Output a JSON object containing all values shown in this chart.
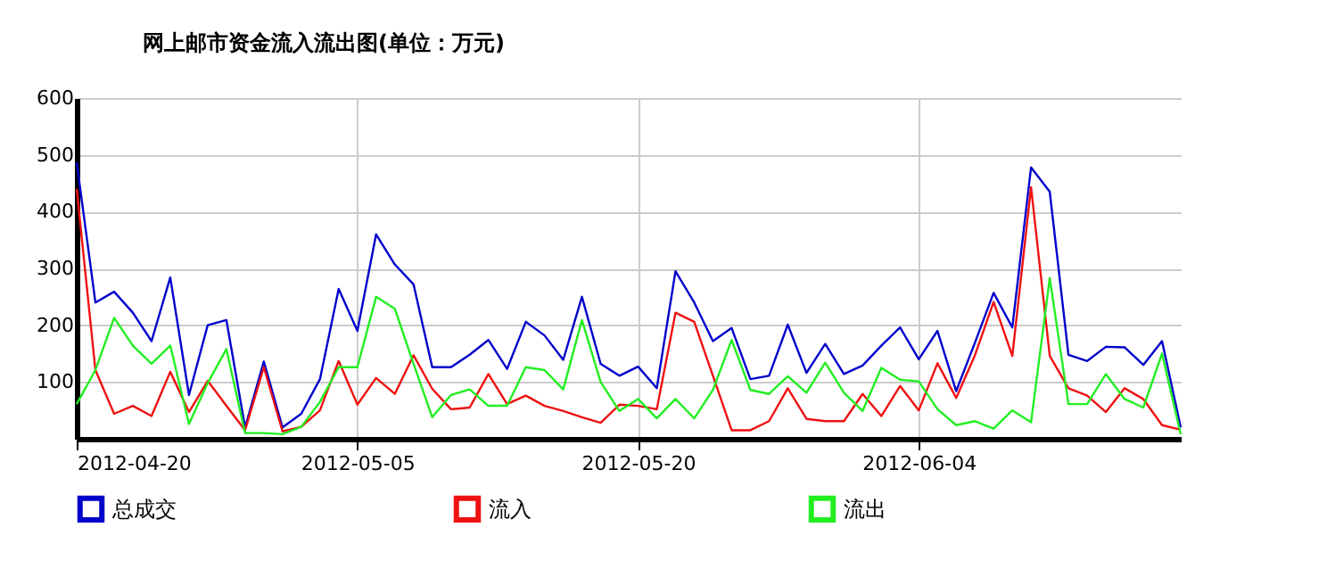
{
  "chart_data": {
    "type": "line",
    "title": "网上邮市资金流入流出图(单位：万元)",
    "x": [
      "2012-04-20",
      "2012-04-21",
      "2012-04-22",
      "2012-04-23",
      "2012-04-24",
      "2012-04-25",
      "2012-04-26",
      "2012-04-27",
      "2012-04-28",
      "2012-04-29",
      "2012-04-30",
      "2012-05-01",
      "2012-05-02",
      "2012-05-03",
      "2012-05-04",
      "2012-05-05",
      "2012-05-06",
      "2012-05-07",
      "2012-05-08",
      "2012-05-09",
      "2012-05-10",
      "2012-05-11",
      "2012-05-12",
      "2012-05-13",
      "2012-05-14",
      "2012-05-15",
      "2012-05-16",
      "2012-05-17",
      "2012-05-18",
      "2012-05-19",
      "2012-05-20",
      "2012-05-21",
      "2012-05-22",
      "2012-05-23",
      "2012-05-24",
      "2012-05-25",
      "2012-05-26",
      "2012-05-27",
      "2012-05-28",
      "2012-05-29",
      "2012-05-30",
      "2012-05-31",
      "2012-06-01",
      "2012-06-02",
      "2012-06-03",
      "2012-06-04",
      "2012-06-05",
      "2012-06-06",
      "2012-06-07",
      "2012-06-08",
      "2012-06-09",
      "2012-06-10",
      "2012-06-11",
      "2012-06-12",
      "2012-06-13",
      "2012-06-14",
      "2012-06-15",
      "2012-06-16",
      "2012-06-17",
      "2012-06-18"
    ],
    "series": [
      {
        "name": "总成交",
        "color": "#0000cc",
        "values": [
          487,
          240,
          259,
          222,
          172,
          284,
          77,
          200,
          209,
          20,
          136,
          20,
          44,
          105,
          264,
          190,
          360,
          307,
          272,
          126,
          126,
          148,
          174,
          123,
          206,
          182,
          139,
          250,
          132,
          111,
          127,
          89,
          295,
          240,
          172,
          195,
          105,
          111,
          201,
          116,
          167,
          114,
          129,
          164,
          196,
          140,
          190,
          84,
          169,
          257,
          196,
          478,
          435,
          148,
          137,
          162,
          161,
          130,
          172,
          20
        ]
      },
      {
        "name": "流入",
        "color": "#ee1111",
        "values": [
          440,
          121,
          44,
          58,
          40,
          118,
          47,
          102,
          58,
          15,
          126,
          13,
          21,
          50,
          137,
          60,
          107,
          79,
          147,
          88,
          52,
          55,
          114,
          61,
          76,
          58,
          49,
          38,
          28,
          60,
          58,
          52,
          222,
          206,
          111,
          15,
          15,
          31,
          89,
          35,
          31,
          31,
          79,
          40,
          93,
          50,
          133,
          72,
          147,
          241,
          146,
          443,
          146,
          89,
          76,
          47,
          89,
          70,
          24,
          16
        ]
      },
      {
        "name": "流出",
        "color": "#22ee22",
        "values": [
          61,
          121,
          213,
          164,
          132,
          164,
          26,
          98,
          158,
          10,
          10,
          8,
          21,
          65,
          126,
          126,
          250,
          229,
          132,
          38,
          77,
          87,
          58,
          58,
          126,
          121,
          87,
          209,
          100,
          49,
          70,
          36,
          70,
          36,
          86,
          174,
          86,
          79,
          110,
          81,
          134,
          81,
          49,
          125,
          104,
          101,
          52,
          24,
          31,
          18,
          50,
          29,
          283,
          61,
          61,
          114,
          70,
          55,
          150,
          8
        ]
      }
    ],
    "xlim": [
      "2012-04-20",
      "2012-06-18"
    ],
    "xticks": [
      "2012-04-20",
      "2012-05-05",
      "2012-05-20",
      "2012-06-04"
    ],
    "ylim": [
      0,
      600
    ],
    "yticks": [
      100,
      200,
      300,
      400,
      500,
      600
    ],
    "grid": true,
    "legend": "bottom left",
    "marker": "none",
    "line_style": "solid"
  }
}
